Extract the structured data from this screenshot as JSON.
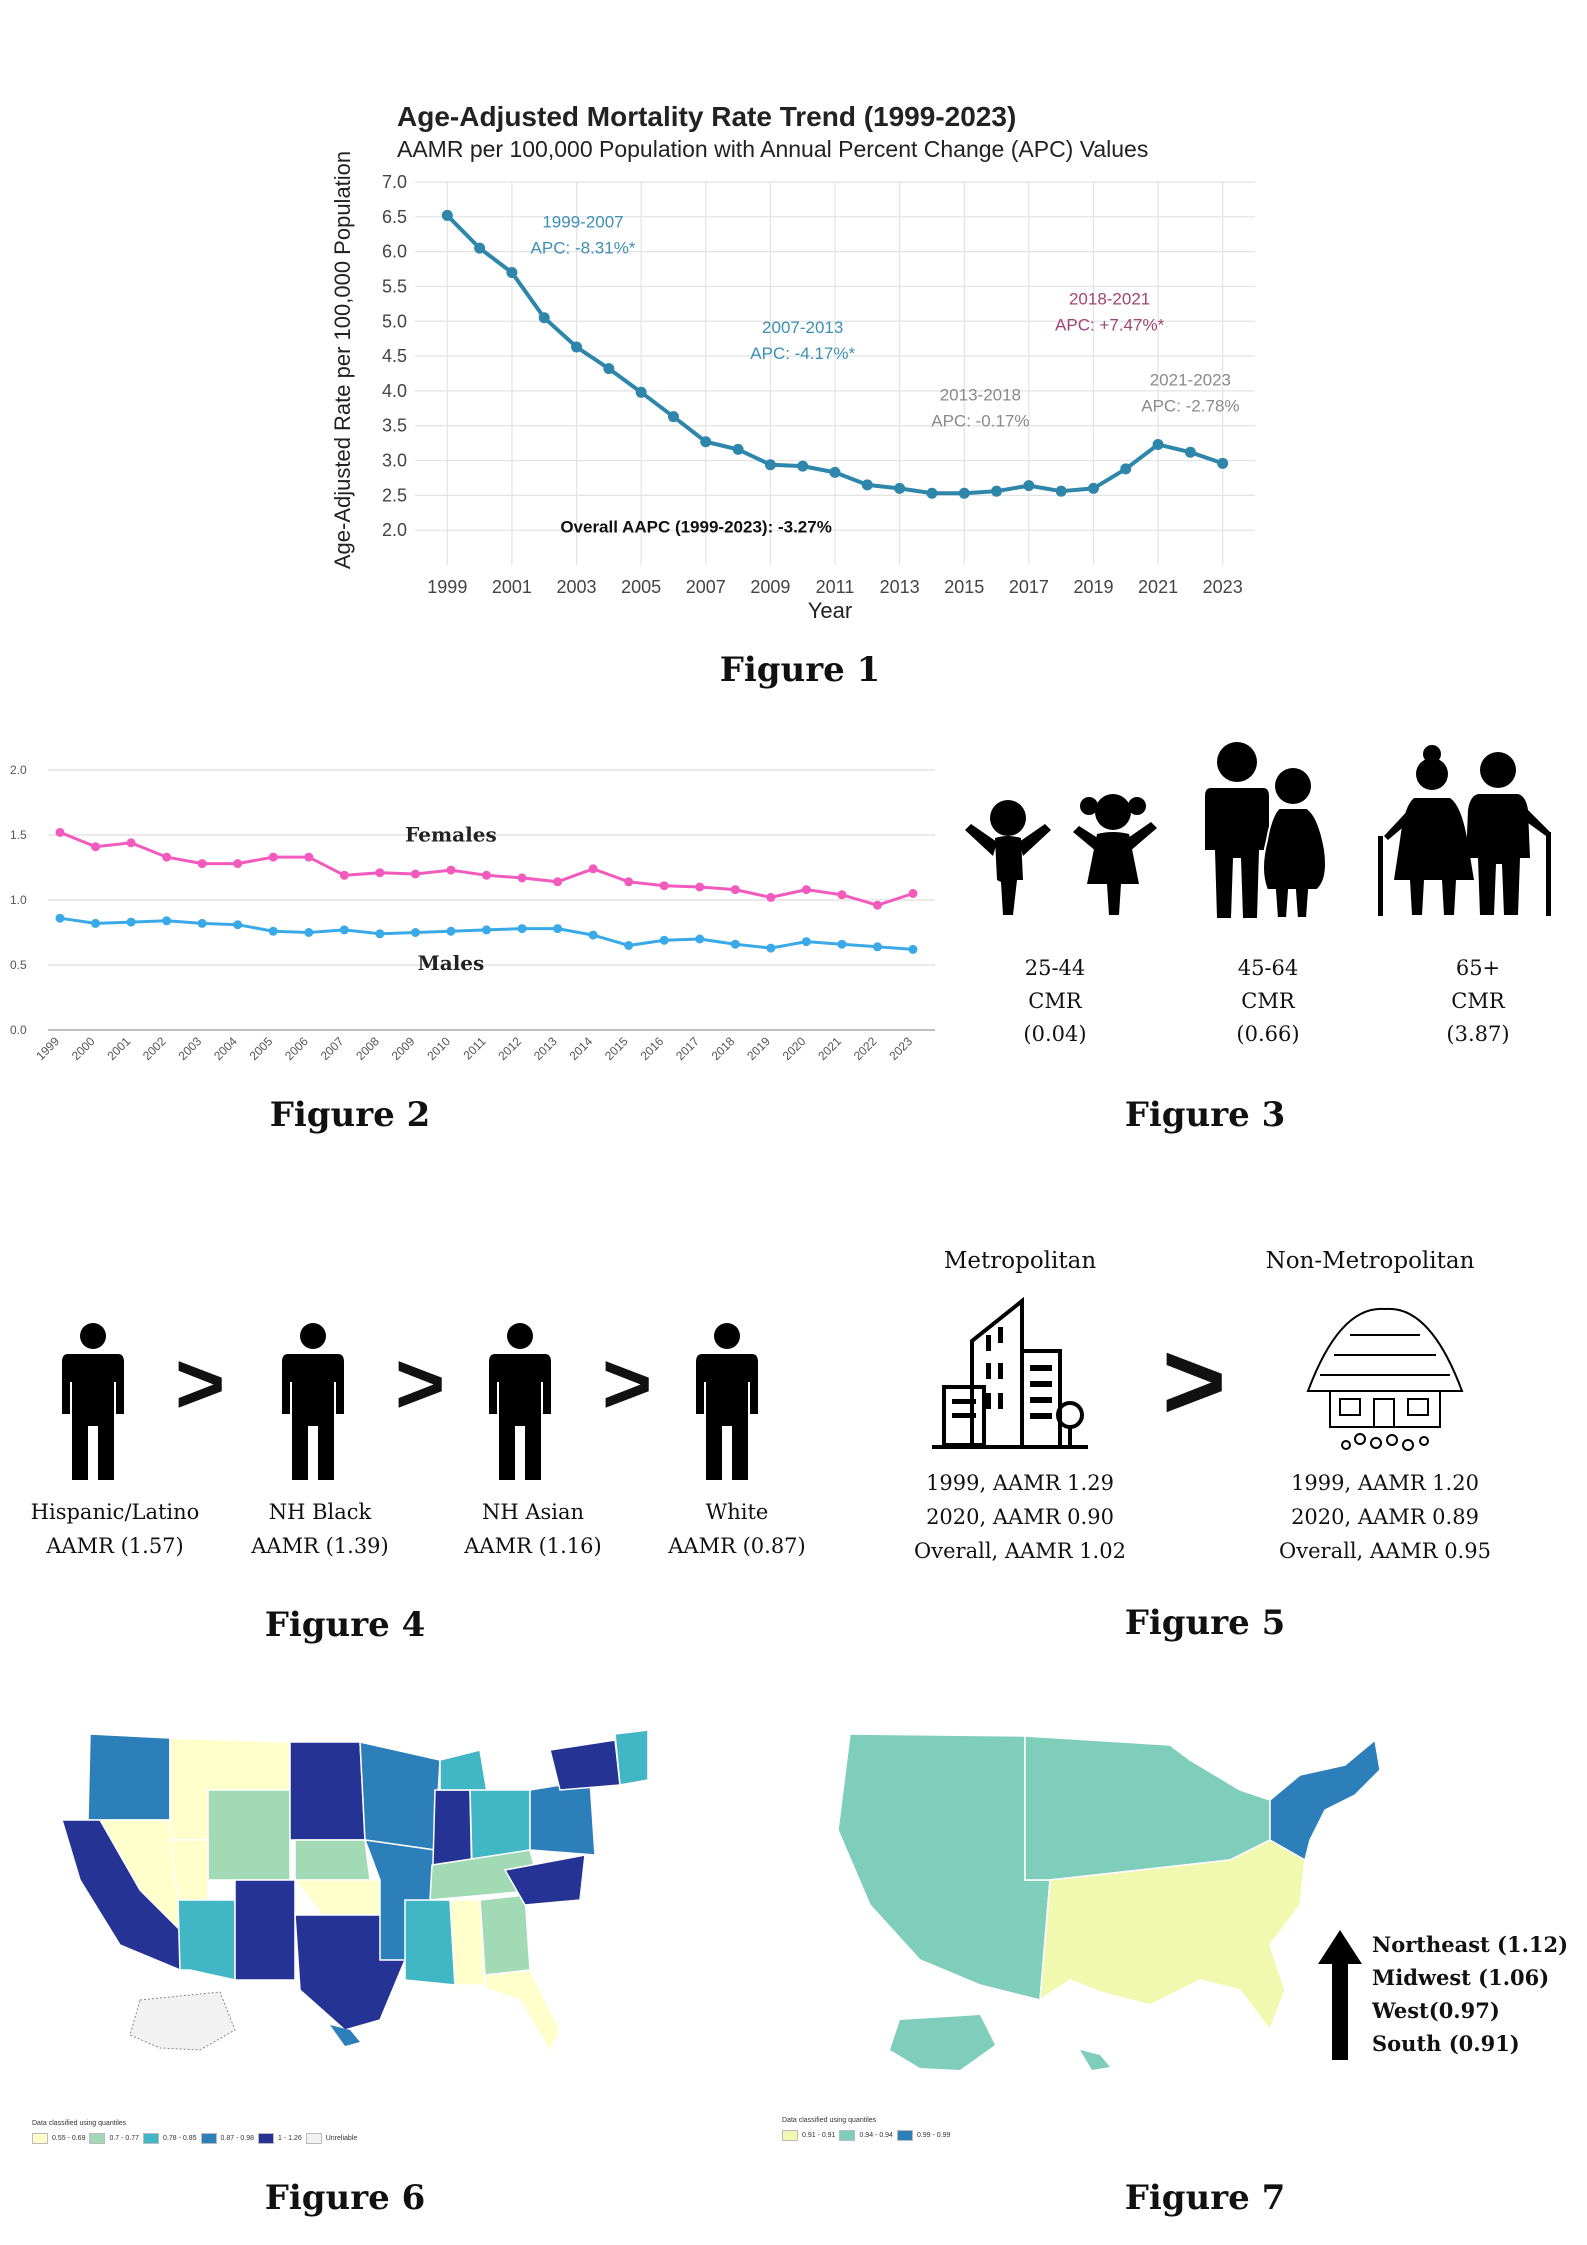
{
  "figure1": {
    "caption": "Figure 1",
    "chart_data": {
      "type": "line",
      "title": "Age-Adjusted Mortality Rate Trend (1999-2023)",
      "subtitle": "AAMR per 100,000 Population with Annual Percent Change (APC) Values",
      "xlabel": "Year",
      "ylabel": "Age-Adjusted Rate per 100,000 Population",
      "ylim": [
        1.5,
        7.0
      ],
      "xlim": [
        1998,
        2024
      ],
      "yticks": [
        "2.0",
        "2.5",
        "3.0",
        "3.5",
        "4.0",
        "4.5",
        "5.0",
        "5.5",
        "6.0",
        "6.5",
        "7.0"
      ],
      "xticks": [
        "1999",
        "2001",
        "2003",
        "2005",
        "2007",
        "2009",
        "2011",
        "2013",
        "2015",
        "2017",
        "2019",
        "2021",
        "2023"
      ],
      "x": [
        1999,
        2000,
        2001,
        2002,
        2003,
        2004,
        2005,
        2006,
        2007,
        2008,
        2009,
        2010,
        2011,
        2012,
        2013,
        2014,
        2015,
        2016,
        2017,
        2018,
        2019,
        2020,
        2021,
        2022,
        2023
      ],
      "values": [
        6.52,
        6.05,
        5.7,
        5.05,
        4.63,
        4.32,
        3.98,
        3.63,
        3.27,
        3.16,
        2.94,
        2.92,
        2.83,
        2.65,
        2.6,
        2.53,
        2.53,
        2.56,
        2.64,
        2.56,
        2.6,
        2.88,
        3.23,
        3.12,
        2.96
      ],
      "color": "#2e86ab",
      "grid": true,
      "annotations": [
        {
          "line1": "1999-2007",
          "line2": "APC: -8.31%*",
          "color": "#3d8fb3",
          "x": 2003.2,
          "y": 6.35
        },
        {
          "line1": "2007-2013",
          "line2": "APC: -4.17%*",
          "color": "#3d8fb3",
          "x": 2010.0,
          "y": 4.83
        },
        {
          "line1": "2013-2018",
          "line2": "APC: -0.17%",
          "color": "#8a8a8a",
          "x": 2015.5,
          "y": 3.86
        },
        {
          "line1": "2018-2021",
          "line2": "APC: +7.47%*",
          "color": "#a0456f",
          "x": 2019.5,
          "y": 5.24
        },
        {
          "line1": "2021-2023",
          "line2": "APC: -2.78%",
          "color": "#8a8a8a",
          "x": 2022.0,
          "y": 4.08
        }
      ],
      "overall_note": "Overall AAPC (1999-2023): -3.27%",
      "overall_note_pos": {
        "x": 2006.7,
        "y": 1.97
      }
    }
  },
  "figure2": {
    "caption": "Figure 2",
    "chart_data": {
      "type": "line",
      "ylim": [
        0.0,
        2.0
      ],
      "yticks": [
        "0.0",
        "0.5",
        "1.0",
        "1.5",
        "2.0"
      ],
      "x": [
        "1999",
        "2000",
        "2001",
        "2002",
        "2003",
        "2004",
        "2005",
        "2006",
        "2007",
        "2008",
        "2009",
        "2010",
        "2011",
        "2012",
        "2013",
        "2014",
        "2015",
        "2016",
        "2017",
        "2018",
        "2019",
        "2020",
        "2021",
        "2022",
        "2023"
      ],
      "grid": true,
      "series": [
        {
          "name": "Females",
          "color": "#f25bbd",
          "values": [
            1.52,
            1.41,
            1.44,
            1.33,
            1.28,
            1.28,
            1.33,
            1.33,
            1.19,
            1.21,
            1.2,
            1.23,
            1.19,
            1.17,
            1.14,
            1.24,
            1.14,
            1.11,
            1.1,
            1.08,
            1.02,
            1.08,
            1.04,
            0.96,
            1.05
          ],
          "label_index": 11,
          "label_y": 1.45
        },
        {
          "name": "Males",
          "color": "#3aa9e8",
          "values": [
            0.86,
            0.82,
            0.83,
            0.84,
            0.82,
            0.81,
            0.76,
            0.75,
            0.77,
            0.74,
            0.75,
            0.76,
            0.77,
            0.78,
            0.78,
            0.73,
            0.65,
            0.69,
            0.7,
            0.66,
            0.63,
            0.68,
            0.66,
            0.64,
            0.62
          ],
          "label_index": 11,
          "label_y": 0.46
        }
      ]
    }
  },
  "figure3": {
    "caption": "Figure 3",
    "groups": [
      {
        "age": "25-44",
        "metric": "CMR",
        "value": "(0.04)",
        "icon": "children-icon"
      },
      {
        "age": "45-64",
        "metric": "CMR",
        "value": "(0.66)",
        "icon": "adults-icon"
      },
      {
        "age": "65+",
        "metric": "CMR",
        "value": "(3.87)",
        "icon": "elderly-couple-icon"
      }
    ]
  },
  "figure4": {
    "caption": "Figure 4",
    "separator": ">",
    "groups": [
      {
        "name": "Hispanic/Latino",
        "value": "AAMR (1.57)"
      },
      {
        "name": "NH Black",
        "value": "AAMR (1.39)"
      },
      {
        "name": "NH Asian",
        "value": "AAMR (1.16)"
      },
      {
        "name": "White",
        "value": "AAMR (0.87)"
      }
    ]
  },
  "figure5": {
    "caption": "Figure 5",
    "separator": ">",
    "metro": {
      "title": "Metropolitan",
      "line1": "1999, AAMR 1.29",
      "line2": "2020, AAMR 0.90",
      "line3": "Overall, AAMR 1.02",
      "icon": "city-buildings-icon"
    },
    "nonmetro": {
      "title": "Non-Metropolitan",
      "line1": "1999, AAMR 1.20",
      "line2": "2020, AAMR 0.89",
      "line3": "Overall, AAMR 0.95",
      "icon": "cottage-icon"
    }
  },
  "figure6": {
    "caption": "Figure 6",
    "legend_title": "Data classified using quantiles",
    "legend": [
      {
        "label": "0.55 - 0.69",
        "color": "#ffffcc"
      },
      {
        "label": "0.7 - 0.77",
        "color": "#a1dab4"
      },
      {
        "label": "0.78 - 0.85",
        "color": "#41b6c4"
      },
      {
        "label": "0.87 - 0.98",
        "color": "#2c7fb8"
      },
      {
        "label": "1 - 1.26",
        "color": "#253494"
      },
      {
        "label": "Unreliable",
        "color": "#f2f2f2"
      }
    ]
  },
  "figure7": {
    "caption": "Figure 7",
    "legend_title": "Data classified using quantiles",
    "legend": [
      {
        "label": "0.91 - 0.91",
        "color": "#f1f9b0"
      },
      {
        "label": "0.94 - 0.94",
        "color": "#7fcdbb"
      },
      {
        "label": "0.99 - 0.99",
        "color": "#2c7fb8"
      }
    ],
    "ranking": [
      "Northeast (1.12)",
      "Midwest (1.06)",
      "West(0.97)",
      "South (0.91)"
    ],
    "arrow_icon": "up-arrow-icon",
    "region_colors": {
      "northeast": "#2c7fb8",
      "midwest": "#7fcdbb",
      "west": "#7fcdbb",
      "south": "#f1f9b0"
    }
  }
}
